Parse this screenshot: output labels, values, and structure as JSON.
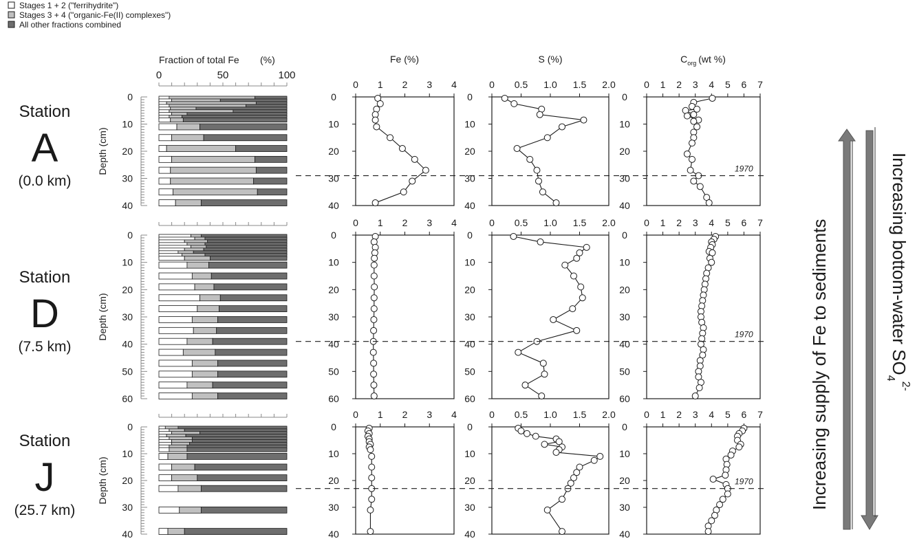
{
  "legend": [
    {
      "label": "Stages 1 + 2 (\"ferrihydrite\")",
      "color": "#ffffff"
    },
    {
      "label": "Stages 3 + 4 (\"organic-Fe(II) complexes\")",
      "color": "#c0c0c0"
    },
    {
      "label": "All other fractions combined",
      "color": "#6e6e6e"
    }
  ],
  "colors": {
    "stage12": "#ffffff",
    "stage34": "#c0c0c0",
    "other": "#6e6e6e",
    "line": "#1a1a1a",
    "arrow": "#7a7a7a"
  },
  "panel_titles": {
    "fraction": "Fraction of total Fe",
    "fraction_unit": "(%)",
    "fe": "Fe (%)",
    "s": "S (%)",
    "corg_main": "C",
    "corg_sub": "org",
    "corg_unit": "(wt %)"
  },
  "depth_label": "Depth (cm)",
  "year_marker": "1970",
  "arrows": {
    "left": "Increasing supply of Fe to sediments",
    "right_main": "Increasing bottom-water SO",
    "right_sub": "4",
    "right_sup": "2-"
  },
  "stations": [
    {
      "word": "Station",
      "letter": "A",
      "distance": "(0.0 km)",
      "depth_max": 40,
      "depth_ticks": [
        0,
        10,
        20,
        30,
        40
      ],
      "marker_depth": 29,
      "fraction_bars": [
        {
          "d": 0.5,
          "s12": 8,
          "s34": 67
        },
        {
          "d": 1.5,
          "s12": 10,
          "s34": 38
        },
        {
          "d": 2.5,
          "s12": 6,
          "s34": 70
        },
        {
          "d": 3.5,
          "s12": 8,
          "s34": 60
        },
        {
          "d": 4.5,
          "s12": 9,
          "s34": 20
        },
        {
          "d": 5.5,
          "s12": 8,
          "s34": 50
        },
        {
          "d": 6.5,
          "s12": 10,
          "s34": 12
        },
        {
          "d": 7.5,
          "s12": 8,
          "s34": 10
        },
        {
          "d": 8.5,
          "s12": 9,
          "s34": 10
        },
        {
          "d": 11,
          "s12": 14,
          "s34": 18
        },
        {
          "d": 15,
          "s12": 10,
          "s34": 25
        },
        {
          "d": 19,
          "s12": 6,
          "s34": 54
        },
        {
          "d": 23,
          "s12": 10,
          "s34": 65
        },
        {
          "d": 27,
          "s12": 9,
          "s34": 67
        },
        {
          "d": 31,
          "s12": 9,
          "s34": 65
        },
        {
          "d": 35,
          "s12": 11,
          "s34": 66
        },
        {
          "d": 39,
          "s12": 13,
          "s34": 20
        }
      ],
      "fe": {
        "xmax": 4,
        "xticks": [
          0,
          1,
          2,
          3,
          4
        ],
        "points": [
          [
            0.9,
            0.5
          ],
          [
            1.0,
            2.5
          ],
          [
            0.85,
            4.5
          ],
          [
            0.8,
            6.5
          ],
          [
            0.8,
            8.5
          ],
          [
            0.85,
            11
          ],
          [
            1.4,
            15
          ],
          [
            1.9,
            19
          ],
          [
            2.4,
            23
          ],
          [
            2.85,
            27
          ],
          [
            2.3,
            31
          ],
          [
            1.95,
            35
          ],
          [
            0.8,
            39
          ]
        ]
      },
      "s": {
        "xmax": 2.0,
        "xticks": [
          "0",
          "0.5",
          "1.0",
          "1.5",
          "2.0"
        ],
        "points": [
          [
            0.22,
            0.5
          ],
          [
            0.38,
            2.5
          ],
          [
            0.85,
            4.5
          ],
          [
            0.82,
            6.5
          ],
          [
            1.57,
            8.5
          ],
          [
            1.2,
            11
          ],
          [
            0.95,
            15
          ],
          [
            0.43,
            19
          ],
          [
            0.65,
            23
          ],
          [
            0.77,
            27
          ],
          [
            0.8,
            31
          ],
          [
            0.87,
            35
          ],
          [
            1.1,
            39
          ]
        ]
      },
      "corg": {
        "xmax": 7,
        "xticks": [
          0,
          1,
          2,
          3,
          4,
          5,
          6,
          7
        ],
        "points": [
          [
            4.05,
            0.5
          ],
          [
            2.9,
            2.0
          ],
          [
            2.8,
            3.5
          ],
          [
            3.1,
            4.5
          ],
          [
            2.4,
            5.0
          ],
          [
            2.9,
            6.5
          ],
          [
            2.5,
            7.0
          ],
          [
            3.2,
            8.5
          ],
          [
            2.9,
            9.0
          ],
          [
            3.1,
            11
          ],
          [
            2.9,
            13
          ],
          [
            2.9,
            15
          ],
          [
            2.8,
            17
          ],
          [
            2.5,
            21
          ],
          [
            2.8,
            23
          ],
          [
            2.7,
            27
          ],
          [
            3.2,
            29
          ],
          [
            2.9,
            31
          ],
          [
            3.3,
            33
          ],
          [
            3.7,
            37
          ],
          [
            3.85,
            39
          ]
        ]
      }
    },
    {
      "word": "Station",
      "letter": "D",
      "distance": "(7.5 km)",
      "depth_max": 60,
      "depth_ticks": [
        0,
        10,
        20,
        30,
        40,
        50,
        60
      ],
      "marker_depth": 39,
      "fraction_bars": [
        {
          "d": 0.5,
          "s12": 25,
          "s34": 8
        },
        {
          "d": 1.5,
          "s12": 28,
          "s34": 8
        },
        {
          "d": 2.5,
          "s12": 20,
          "s34": 18
        },
        {
          "d": 3.5,
          "s12": 22,
          "s34": 14
        },
        {
          "d": 4.5,
          "s12": 25,
          "s34": 12
        },
        {
          "d": 5.5,
          "s12": 20,
          "s34": 15
        },
        {
          "d": 6.5,
          "s12": 15,
          "s34": 12
        },
        {
          "d": 7.5,
          "s12": 18,
          "s34": 18
        },
        {
          "d": 8.5,
          "s12": 20,
          "s34": 20
        },
        {
          "d": 11,
          "s12": 22,
          "s34": 17
        },
        {
          "d": 15,
          "s12": 26,
          "s34": 15
        },
        {
          "d": 19,
          "s12": 28,
          "s34": 15
        },
        {
          "d": 23,
          "s12": 32,
          "s34": 16
        },
        {
          "d": 27,
          "s12": 30,
          "s34": 17
        },
        {
          "d": 31,
          "s12": 26,
          "s34": 20
        },
        {
          "d": 35,
          "s12": 27,
          "s34": 18
        },
        {
          "d": 39,
          "s12": 22,
          "s34": 20
        },
        {
          "d": 43,
          "s12": 19,
          "s34": 25
        },
        {
          "d": 47,
          "s12": 26,
          "s34": 20
        },
        {
          "d": 51,
          "s12": 26,
          "s34": 20
        },
        {
          "d": 55,
          "s12": 22,
          "s34": 20
        },
        {
          "d": 59,
          "s12": 26,
          "s34": 20
        }
      ],
      "fe": {
        "xmax": 4,
        "xticks": [
          0,
          1,
          2,
          3,
          4
        ],
        "points": [
          [
            0.8,
            0.5
          ],
          [
            0.75,
            2.5
          ],
          [
            0.8,
            4.5
          ],
          [
            0.78,
            6.5
          ],
          [
            0.76,
            8.5
          ],
          [
            0.75,
            11
          ],
          [
            0.75,
            15
          ],
          [
            0.76,
            19
          ],
          [
            0.75,
            23
          ],
          [
            0.75,
            27
          ],
          [
            0.74,
            31
          ],
          [
            0.73,
            35
          ],
          [
            0.72,
            39
          ],
          [
            0.72,
            43
          ],
          [
            0.73,
            47
          ],
          [
            0.73,
            51
          ],
          [
            0.74,
            55
          ],
          [
            0.75,
            59
          ]
        ]
      },
      "s": {
        "xmax": 2.0,
        "xticks": [
          "0",
          "0.5",
          "1.0",
          "1.5",
          "2.0"
        ],
        "points": [
          [
            0.37,
            0.5
          ],
          [
            0.83,
            2.5
          ],
          [
            1.62,
            4.5
          ],
          [
            1.5,
            6.5
          ],
          [
            1.45,
            8.5
          ],
          [
            1.25,
            11
          ],
          [
            1.4,
            15
          ],
          [
            1.52,
            19
          ],
          [
            1.55,
            23
          ],
          [
            1.38,
            27
          ],
          [
            1.05,
            31
          ],
          [
            1.45,
            35
          ],
          [
            0.77,
            39
          ],
          [
            0.45,
            43
          ],
          [
            0.88,
            47
          ],
          [
            0.9,
            51
          ],
          [
            0.57,
            55
          ],
          [
            0.85,
            59
          ]
        ]
      },
      "corg": {
        "xmax": 7,
        "xticks": [
          0,
          1,
          2,
          3,
          4,
          5,
          6,
          7
        ],
        "points": [
          [
            4.25,
            0.5
          ],
          [
            4.15,
            1.5
          ],
          [
            4.0,
            2.5
          ],
          [
            4.05,
            3.5
          ],
          [
            3.95,
            4.5
          ],
          [
            3.85,
            6
          ],
          [
            4.05,
            6.5
          ],
          [
            3.9,
            8.5
          ],
          [
            4.0,
            10
          ],
          [
            3.8,
            12
          ],
          [
            3.7,
            14
          ],
          [
            3.65,
            16
          ],
          [
            3.6,
            18
          ],
          [
            3.55,
            20
          ],
          [
            3.5,
            22
          ],
          [
            3.45,
            24
          ],
          [
            3.4,
            26
          ],
          [
            3.35,
            28
          ],
          [
            3.35,
            30
          ],
          [
            3.4,
            32
          ],
          [
            3.5,
            34
          ],
          [
            3.45,
            36
          ],
          [
            3.4,
            38
          ],
          [
            3.35,
            40
          ],
          [
            3.5,
            42
          ],
          [
            3.45,
            44
          ],
          [
            3.3,
            46
          ],
          [
            3.3,
            48
          ],
          [
            3.2,
            50
          ],
          [
            3.2,
            52
          ],
          [
            3.35,
            54
          ],
          [
            3.25,
            56
          ],
          [
            3.0,
            59
          ]
        ]
      }
    },
    {
      "word": "Station",
      "letter": "J",
      "distance": "(25.7 km)",
      "depth_max": 40,
      "depth_ticks": [
        0,
        10,
        20,
        30,
        40
      ],
      "marker_depth": 23,
      "fraction_bars": [
        {
          "d": 0.5,
          "s12": 5,
          "s34": 10
        },
        {
          "d": 1.5,
          "s12": 8,
          "s34": 12
        },
        {
          "d": 2.5,
          "s12": 10,
          "s34": 22
        },
        {
          "d": 3.5,
          "s12": 6,
          "s34": 15
        },
        {
          "d": 4.5,
          "s12": 8,
          "s34": 18
        },
        {
          "d": 5.5,
          "s12": 10,
          "s34": 16
        },
        {
          "d": 6.5,
          "s12": 10,
          "s34": 14
        },
        {
          "d": 7.5,
          "s12": 8,
          "s34": 14
        },
        {
          "d": 8.5,
          "s12": 8,
          "s34": 14
        },
        {
          "d": 11,
          "s12": 7,
          "s34": 15
        },
        {
          "d": 15,
          "s12": 10,
          "s34": 18
        },
        {
          "d": 19,
          "s12": 10,
          "s34": 20
        },
        {
          "d": 23,
          "s12": 15,
          "s34": 18
        },
        {
          "d": 31,
          "s12": 16,
          "s34": 17
        },
        {
          "d": 39,
          "s12": 7,
          "s34": 13
        }
      ],
      "fe": {
        "xmax": 4,
        "xticks": [
          0,
          1,
          2,
          3,
          4
        ],
        "points": [
          [
            0.55,
            0.5
          ],
          [
            0.5,
            1.5
          ],
          [
            0.55,
            2.5
          ],
          [
            0.5,
            3.5
          ],
          [
            0.55,
            4.5
          ],
          [
            0.55,
            5.5
          ],
          [
            0.6,
            6.5
          ],
          [
            0.55,
            7.5
          ],
          [
            0.6,
            8.5
          ],
          [
            0.65,
            11
          ],
          [
            0.65,
            15
          ],
          [
            0.65,
            19
          ],
          [
            0.65,
            23
          ],
          [
            0.65,
            27
          ],
          [
            0.6,
            31
          ],
          [
            0.6,
            39
          ]
        ]
      },
      "s": {
        "xmax": 2.0,
        "xticks": [
          "0",
          "0.5",
          "1.0",
          "1.5",
          "2.0"
        ],
        "points": [
          [
            0.45,
            0.5
          ],
          [
            0.5,
            1.5
          ],
          [
            0.6,
            2.5
          ],
          [
            0.75,
            3.5
          ],
          [
            1.1,
            4.5
          ],
          [
            1.15,
            5.5
          ],
          [
            0.9,
            6.5
          ],
          [
            1.2,
            7.5
          ],
          [
            1.15,
            8.5
          ],
          [
            1.1,
            9.5
          ],
          [
            1.85,
            11
          ],
          [
            1.75,
            12.5
          ],
          [
            1.5,
            15
          ],
          [
            1.45,
            17
          ],
          [
            1.4,
            19
          ],
          [
            1.35,
            21
          ],
          [
            1.3,
            23
          ],
          [
            1.2,
            27
          ],
          [
            0.95,
            31
          ],
          [
            1.2,
            39
          ]
        ]
      },
      "corg": {
        "xmax": 7,
        "xticks": [
          0,
          1,
          2,
          3,
          4,
          5,
          6,
          7
        ],
        "points": [
          [
            6.0,
            0.5
          ],
          [
            5.9,
            1.5
          ],
          [
            5.7,
            2.5
          ],
          [
            5.6,
            3.5
          ],
          [
            5.6,
            5
          ],
          [
            5.8,
            6.5
          ],
          [
            5.7,
            7.5
          ],
          [
            5.3,
            9
          ],
          [
            5.2,
            10.5
          ],
          [
            4.9,
            12
          ],
          [
            4.95,
            14
          ],
          [
            4.9,
            16
          ],
          [
            4.85,
            18
          ],
          [
            4.1,
            19.5
          ],
          [
            4.9,
            21.5
          ],
          [
            5.0,
            23
          ],
          [
            5.0,
            25
          ],
          [
            4.7,
            27
          ],
          [
            4.5,
            29
          ],
          [
            4.3,
            31
          ],
          [
            4.2,
            33
          ],
          [
            4.0,
            35
          ],
          [
            3.8,
            37
          ],
          [
            3.8,
            39
          ]
        ]
      }
    }
  ],
  "chart_data": [
    {
      "type": "bar",
      "description_of_panels": "fraction",
      "title": "Fraction of total Fe (%)",
      "note": "Stacked horizontal bars per depth for stations A, D, J"
    },
    {
      "type": "scatter",
      "title": "Fe (%)",
      "xlim": [
        0,
        4
      ]
    },
    {
      "type": "scatter",
      "title": "S (%)",
      "xlim": [
        0,
        2.0
      ]
    },
    {
      "type": "scatter",
      "title": "Corg (wt %)",
      "xlim": [
        0,
        7
      ]
    }
  ]
}
